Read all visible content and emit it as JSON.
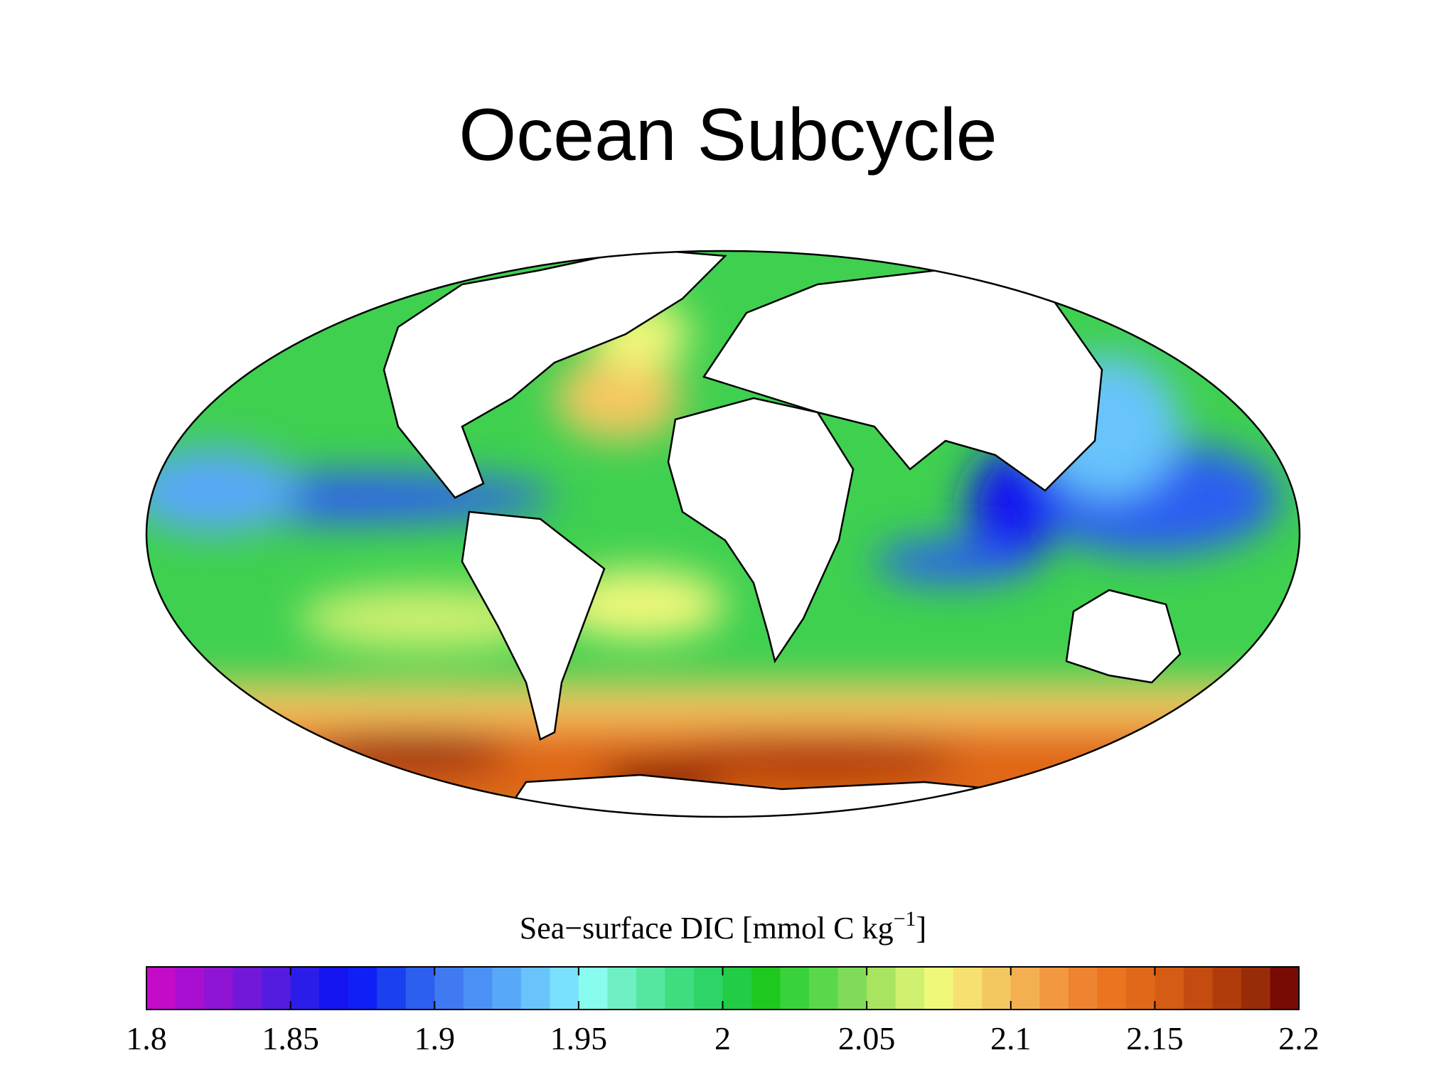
{
  "header": {
    "title": "Ocean Subcycle"
  },
  "colorbar": {
    "label": {
      "main": "Sea−surface DIC [mmol C kg",
      "superscript": "−1",
      "close": "]"
    },
    "clim": [
      1.8,
      2.2
    ],
    "ticks": [
      1.8,
      1.85,
      1.9,
      1.95,
      2,
      2.05,
      2.1,
      2.15,
      2.2
    ],
    "colors": [
      "#c40bc8",
      "#a80fd0",
      "#8f14d4",
      "#7218d8",
      "#551ce0",
      "#2b1cea",
      "#1414f0",
      "#0f1ff5",
      "#1a40f0",
      "#2c5ef0",
      "#3f7af2",
      "#4b91f5",
      "#58a8f8",
      "#68c4fb",
      "#7ae0fd",
      "#88fcee",
      "#6ff0c4",
      "#55e6a0",
      "#3fdc80",
      "#2fd468",
      "#22cc44",
      "#1ec81e",
      "#3ad23a",
      "#5ad84a",
      "#80dc58",
      "#a8e460",
      "#d0f070",
      "#f0f87a",
      "#f8e070",
      "#f4c860",
      "#f4b050",
      "#f29840",
      "#ee8430",
      "#ea7420",
      "#e06818",
      "#d45c14",
      "#c44c10",
      "#b03c0c",
      "#982c08",
      "#780c04"
    ]
  }
}
